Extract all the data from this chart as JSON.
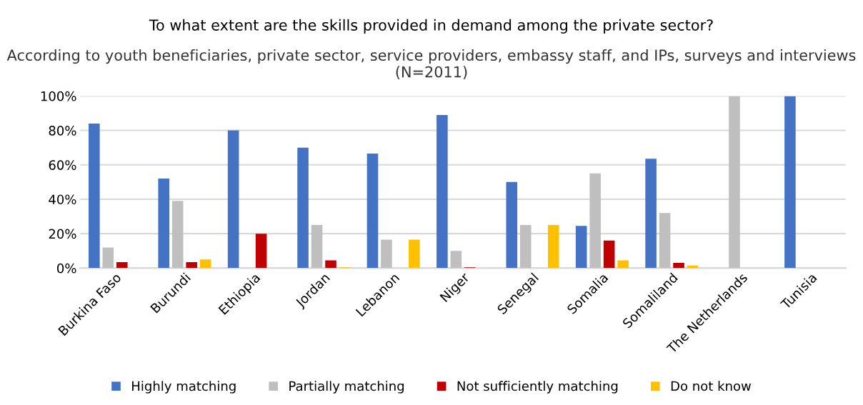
{
  "chart_data": {
    "type": "bar",
    "title": "To what extent are the skills provided in demand among the private sector?",
    "subtitle": "According to youth beneficiaries, private sector, service providers, embassy staff, and IPs, surveys and interviews (N=2011)",
    "categories": [
      "Burkina Faso",
      "Burundi",
      "Ethiopia",
      "Jordan",
      "Lebanon",
      "Niger",
      "Senegal",
      "Somalia",
      "Somaliland",
      "The Netherlands",
      "Tunisia"
    ],
    "series": [
      {
        "name": "Highly matching",
        "color": "#4472c4",
        "values": [
          84,
          52,
          80,
          70,
          66.5,
          89,
          50,
          24.5,
          63.5,
          null,
          100
        ]
      },
      {
        "name": "Partially matching",
        "color": "#bfbfbf",
        "values": [
          12,
          39,
          null,
          25,
          16.5,
          10,
          25,
          55,
          32,
          100,
          null
        ]
      },
      {
        "name": "Not sufficiently matching",
        "color": "#c00000",
        "values": [
          3.5,
          3.5,
          20,
          4.5,
          null,
          0.5,
          null,
          16,
          3,
          null,
          null
        ]
      },
      {
        "name": "Do not know",
        "color": "#ffc000",
        "values": [
          null,
          5,
          null,
          0.5,
          16.5,
          null,
          25,
          4.5,
          1.5,
          null,
          null
        ]
      }
    ],
    "ylim": [
      0,
      100
    ],
    "yticks": [
      {
        "value": 0,
        "label": "0%"
      },
      {
        "value": 20,
        "label": "20%"
      },
      {
        "value": 40,
        "label": "40%"
      },
      {
        "value": 60,
        "label": "60%"
      },
      {
        "value": 80,
        "label": "80%"
      },
      {
        "value": 100,
        "label": "100%"
      }
    ],
    "grid": "y",
    "legend": "bottom"
  }
}
